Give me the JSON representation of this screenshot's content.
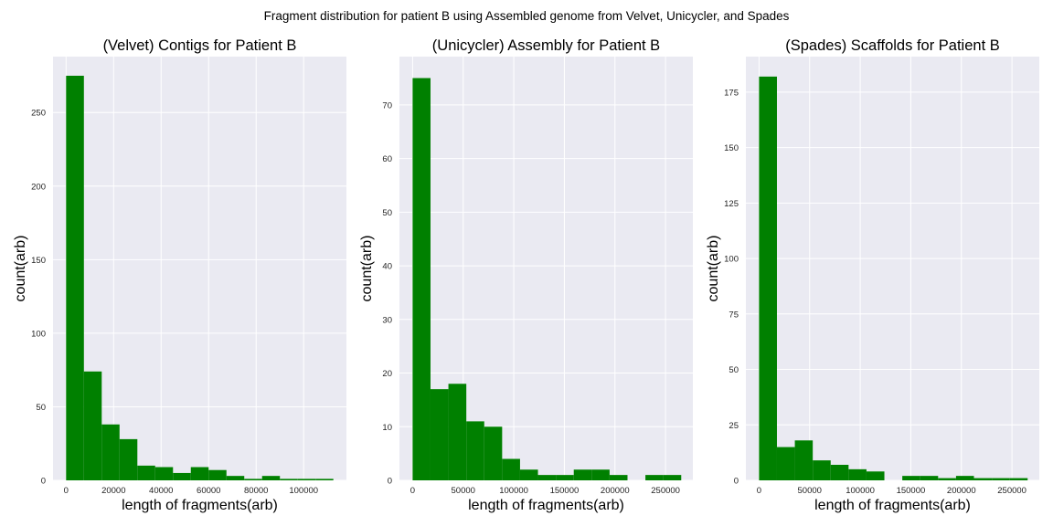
{
  "figure": {
    "suptitle": "Fragment distribution for patient B using Assembled genome from Velvet, Unicycler, and Spades"
  },
  "colors": {
    "bar": "#008000",
    "panel_bg": "#eaeaf2",
    "grid": "#ffffff"
  },
  "chart_data": [
    {
      "type": "bar",
      "title": "(Velvet) Contigs for Patient B",
      "xlabel": "length of fragments(arb)",
      "ylabel": "count(arb)",
      "grid": true,
      "xlim": [
        -5500,
        118000
      ],
      "ylim": [
        0,
        288
      ],
      "xticks": [
        0,
        20000,
        40000,
        60000,
        80000,
        100000
      ],
      "yticks": [
        0,
        50,
        100,
        150,
        200,
        250
      ],
      "bin_edges": [
        0,
        7500,
        15000,
        22500,
        30000,
        37500,
        45000,
        52500,
        60000,
        67500,
        75000,
        82500,
        90000,
        97500,
        105000,
        112500
      ],
      "values": [
        275,
        74,
        38,
        28,
        10,
        9,
        5,
        9,
        7,
        3,
        1,
        3,
        1,
        1,
        1
      ]
    },
    {
      "type": "bar",
      "title": "(Unicycler) Assembly for Patient B",
      "xlabel": "length of fragments(arb)",
      "ylabel": "count(arb)",
      "grid": true,
      "xlim": [
        -13000,
        277000
      ],
      "ylim": [
        0,
        79
      ],
      "xticks": [
        0,
        50000,
        100000,
        150000,
        200000,
        250000
      ],
      "yticks": [
        0,
        10,
        20,
        30,
        40,
        50,
        60,
        70
      ],
      "bin_edges": [
        0,
        17700,
        35400,
        53100,
        70800,
        88500,
        106200,
        123900,
        141600,
        159300,
        177000,
        194700,
        212400,
        230100,
        247800,
        265500
      ],
      "values": [
        75,
        17,
        18,
        11,
        10,
        4,
        2,
        1,
        1,
        2,
        2,
        1,
        0,
        1,
        1
      ]
    },
    {
      "type": "bar",
      "title": "(Spades) Scaffolds for Patient B",
      "xlabel": "length of fragments(arb)",
      "ylabel": "count(arb)",
      "grid": true,
      "xlim": [
        -13000,
        277000
      ],
      "ylim": [
        0,
        191
      ],
      "xticks": [
        0,
        50000,
        100000,
        150000,
        200000,
        250000
      ],
      "yticks": [
        0,
        25,
        50,
        75,
        100,
        125,
        150,
        175
      ],
      "bin_edges": [
        0,
        17700,
        35400,
        53100,
        70800,
        88500,
        106200,
        123900,
        141600,
        159300,
        177000,
        194700,
        212400,
        230100,
        247800,
        265500
      ],
      "values": [
        182,
        15,
        18,
        9,
        7,
        5,
        4,
        0,
        2,
        2,
        1,
        2,
        1,
        1,
        1
      ]
    }
  ]
}
